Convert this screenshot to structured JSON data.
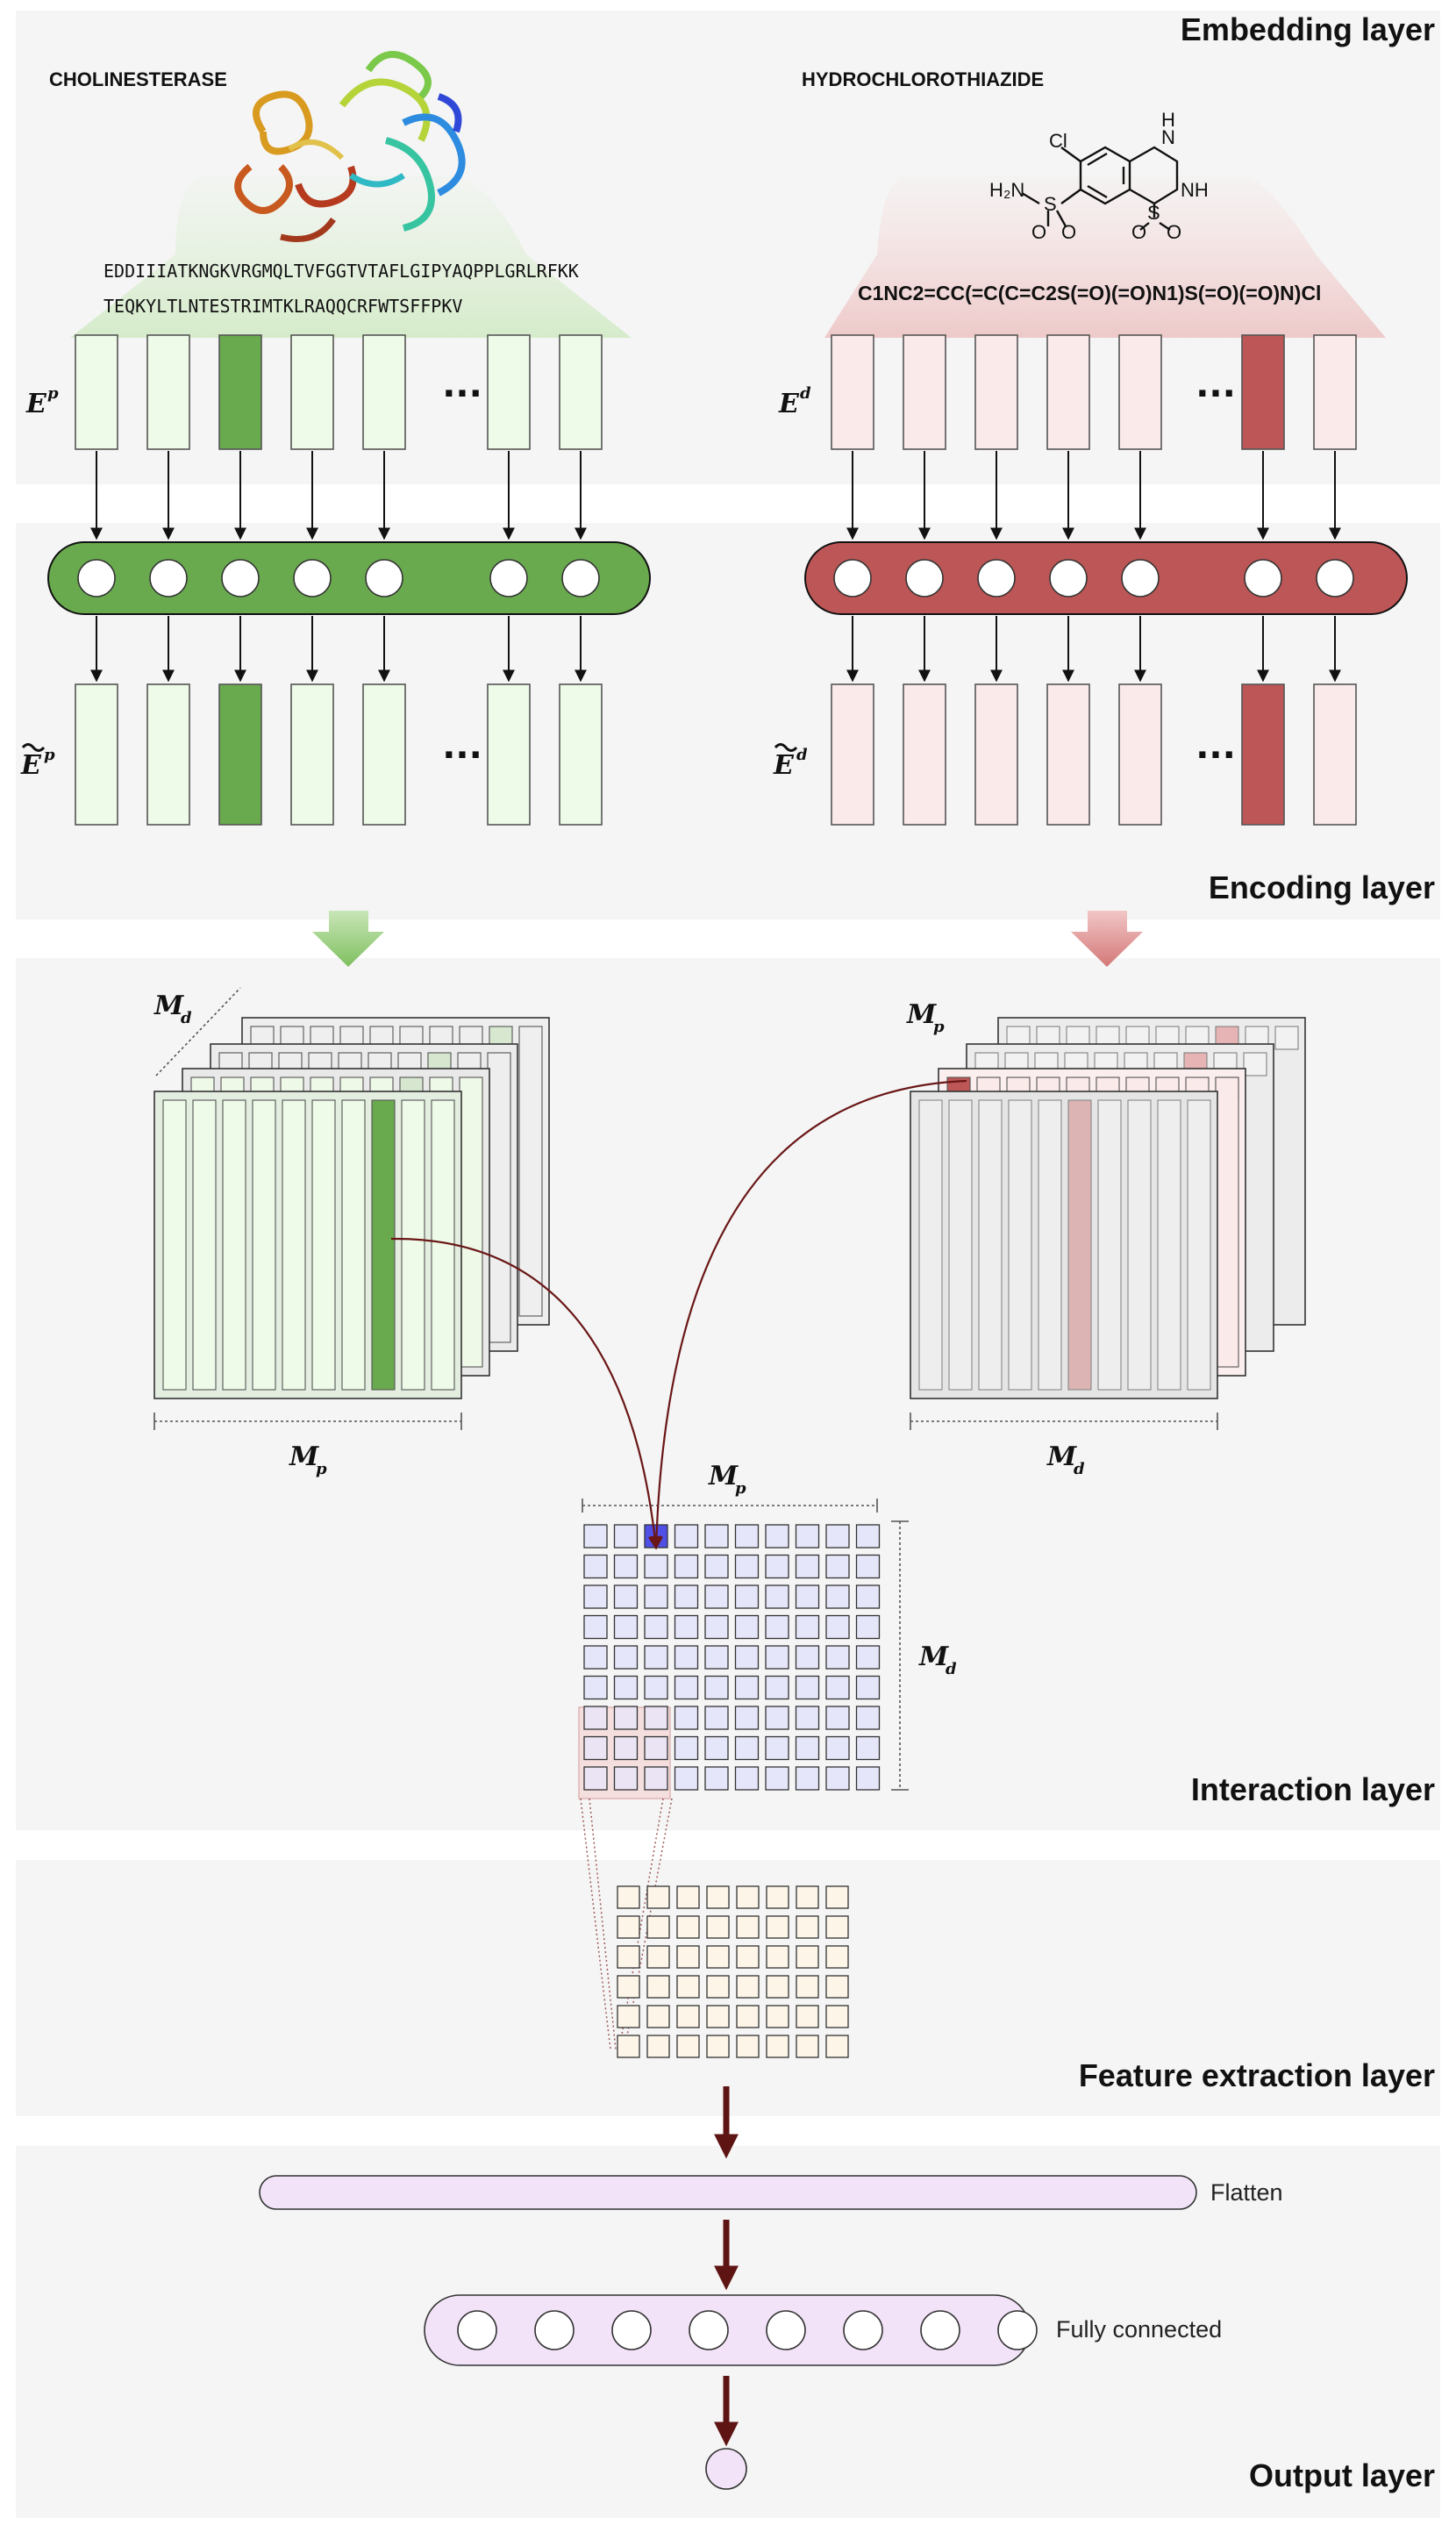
{
  "layers": {
    "embedding": "Embedding layer",
    "encoding": "Encoding layer",
    "interaction": "Interaction layer",
    "feature": "Feature extraction layer",
    "output": "Output layer"
  },
  "protein": {
    "name": "CHOLINESTERASE",
    "seq_line1": "EDDIIIATKNGKVRGMQLTVFGGTVTAFLGIPYAQPPLGRLRFKK",
    "seq_line2": "TEQKYLTLNTESTRIMTKLRAQQCRFWTSFFPKV",
    "embed_symbol": "E",
    "embed_sup": "p",
    "encoded_symbol": "E",
    "encoded_sup": "p"
  },
  "drug": {
    "name": "HYDROCHLOROTHIAZIDE",
    "smiles": "C1NC2=CC(=C(C=C2S(=O)(=O)N1)S(=O)(=O)N)Cl",
    "embed_symbol": "E",
    "embed_sup": "d",
    "encoded_symbol": "E",
    "encoded_sup": "d",
    "atoms": {
      "cl": "Cl",
      "h_top": "H",
      "n_top": "N",
      "nh": "NH",
      "h2n": "H₂N",
      "s_left": "S",
      "s_right": "S",
      "o1": "O",
      "o2": "O",
      "o3": "O",
      "o4": "O"
    }
  },
  "ellipsis": "···",
  "interaction": {
    "protein_depth_label": "M",
    "protein_depth_sub": "d",
    "protein_width_label": "M",
    "protein_width_sub": "p",
    "drug_depth_label": "M",
    "drug_depth_sub": "p",
    "drug_width_label": "M",
    "drug_width_sub": "d",
    "matrix_top_label": "M",
    "matrix_top_sub": "p",
    "matrix_side_label": "M",
    "matrix_side_sub": "d",
    "matrix_rows": 9,
    "matrix_cols": 10,
    "feature_rows": 6,
    "feature_cols": 8
  },
  "output": {
    "flatten_label": "Flatten",
    "fc_label": "Fully connected",
    "fc_nodes": 8
  },
  "colors": {
    "protein_accent": "#6aaa4f",
    "protein_light": "#eefbe8",
    "drug_accent": "#bd5656",
    "drug_light": "#fbeaea",
    "matrix_cell": "#e6e6fb",
    "matrix_highlight": "#5050e6",
    "feature_cell": "#fdf6e8",
    "output_fill": "#f3e3f8",
    "arrow_dark": "#5f1414"
  }
}
